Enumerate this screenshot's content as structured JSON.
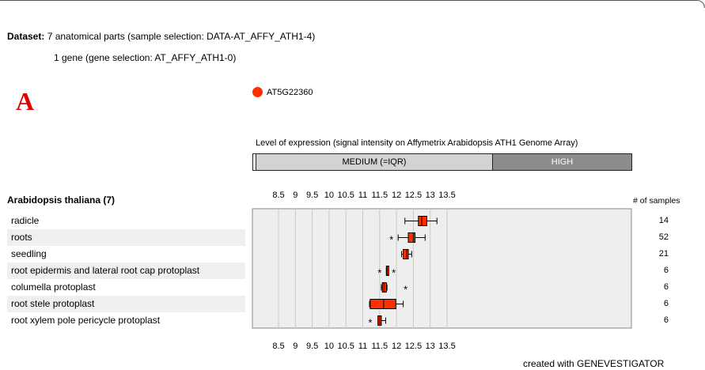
{
  "header": {
    "dataset_label": "Dataset:",
    "dataset_line1": "7 anatomical parts (sample selection: DATA-AT_AFFY_ATH1-4)",
    "dataset_line2": "1 gene (gene selection: AT_AFFY_ATH1-0)",
    "panel_letter": "A"
  },
  "legend": {
    "gene": "AT5G22360",
    "color": "#ff3000"
  },
  "expression_level": {
    "title": "Level of expression (signal intensity on Affymetrix Arabidopsis ATH1 Genome Array)",
    "medium_label": "MEDIUM (=IQR)",
    "high_label": "HIGH",
    "medium_color": "#d3d3d3",
    "high_color": "#8c8c8c"
  },
  "species_label": "Arabidopsis thaliana (7)",
  "samples_header": "# of samples",
  "credit": "created with GENEVESTIGATOR",
  "chart_data": {
    "type": "boxplot",
    "orientation": "horizontal",
    "xlim": [
      8.1,
      13.8
    ],
    "ticks": [
      "8.5",
      "9",
      "9.5",
      "10",
      "10.5",
      "11",
      "11.5",
      "12",
      "12.5",
      "13",
      "13.5"
    ],
    "series": [
      {
        "name": "radicle",
        "samples": "14",
        "min": 12.25,
        "q1": 12.65,
        "median": 12.75,
        "q3": 12.9,
        "max": 13.2,
        "outliers": []
      },
      {
        "name": "roots",
        "samples": "52",
        "min": 12.05,
        "q1": 12.35,
        "median": 12.5,
        "q3": 12.55,
        "max": 12.85,
        "outliers": [
          11.85
        ]
      },
      {
        "name": "seedling",
        "samples": "21",
        "min": 12.15,
        "q1": 12.2,
        "median": 12.3,
        "q3": 12.35,
        "max": 12.45,
        "outliers": []
      },
      {
        "name": "root epidermis and lateral root cap protoplast",
        "samples": "6",
        "min": 11.7,
        "q1": 11.7,
        "median": 11.72,
        "q3": 11.74,
        "max": 11.74,
        "outliers": [
          11.5,
          11.92
        ]
      },
      {
        "name": "columella protoplast",
        "samples": "6",
        "min": 11.55,
        "q1": 11.58,
        "median": 11.63,
        "q3": 11.7,
        "max": 11.72,
        "outliers": [
          12.27
        ]
      },
      {
        "name": "root stele protoplast",
        "samples": "6",
        "min": 11.2,
        "q1": 11.22,
        "median": 11.62,
        "q3": 11.98,
        "max": 12.2,
        "outliers": []
      },
      {
        "name": "root xylem pole pericycle protoplast",
        "samples": "6",
        "min": 11.45,
        "q1": 11.45,
        "median": 11.5,
        "q3": 11.55,
        "max": 11.68,
        "outliers": [
          11.22
        ]
      }
    ]
  }
}
